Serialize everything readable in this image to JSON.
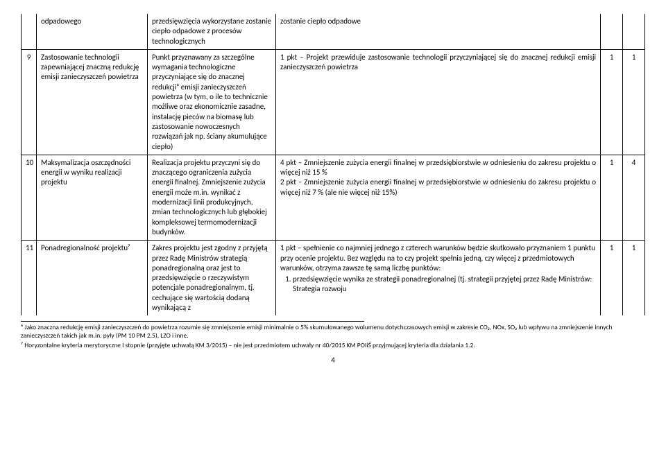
{
  "rows": [
    {
      "num": "",
      "name_cont": "odpadowego",
      "desc_cont": "przedsięwzięcia wykorzystane zostanie ciepło odpadowe z procesów technologicznych",
      "eval_cont": "zostanie ciepło odpadowe",
      "pt1": "",
      "pt2": ""
    },
    {
      "num": "9",
      "name": "Zastosowanie technologii zapewniającej znaczną redukcję emisji zanieczyszczeń powietrza",
      "desc": "Punkt przyznawany za szczególne wymagania technologiczne przyczyniające się do znacznej redukcji⁶ emisji zanieczyszczeń powietrza (w tym, o ile to technicznie możliwe oraz ekonomicznie zasadne, instalację pieców na biomasę lub zastosowanie nowoczesnych rozwiązań jak np. ściany akumulujące ciepło)",
      "eval": "1 pkt – Projekt przewiduje zastosowanie technologii przyczyniającej się do znacznej redukcji emisji zanieczyszczeń powietrza",
      "pt1": "1",
      "pt2": "1"
    },
    {
      "num": "10",
      "name": "Maksymalizacja oszczędności energii w wyniku realizacji projektu",
      "desc": "Realizacja projektu przyczyni się do znaczącego ograniczenia zużycia energii finalnej. Zmniejszenie zużycia energii może m.in. wynikać z modernizacji linii produkcyjnych, zmian technologicznych lub głębokiej kompleksowej termomodernizacji budynków.",
      "eval_line1": "4 pkt – Zmniejszenie zużycia energii finalnej w przedsiębiorstwie w odniesieniu do zakresu projektu o więcej niż 15 %",
      "eval_line2": "2 pkt – Zmniejszenie zużycia energii finalnej w przedsiębiorstwie w odniesieniu do zakresu projektu o więcej niż 7 % (ale nie więcej niż 15%)",
      "pt1": "1",
      "pt2": "4"
    },
    {
      "num": "11",
      "name": "Ponadregionalność projektu⁷",
      "desc": "Zakres projektu jest zgodny z przyjętą przez Radę Ministrów strategią ponadregionalną oraz jest to przedsięwzięcie o rzeczywistym potencjale ponadregionalnym, tj. cechujące się wartością dodaną wynikającą z",
      "eval_intro": "1 pkt – spełnienie co najmniej jednego z czterech warunków będzie skutkowało przyznaniem 1 punktu przy ocenie projektu. Bez względu na to czy projekt spełnia jedną, czy więcej  z przedmiotowych warunków, otrzyma zawsze tę samą liczbę punktów:",
      "eval_item1": "przedsięwzięcie wynika ze strategii ponadregionalnej (tj. strategii przyjętej przez Radę Ministrów: Strategia rozwoju",
      "pt1": "1",
      "pt2": "1"
    }
  ],
  "footnotes": {
    "f6": "⁶ Jako znaczna redukcję emisji zanieczyszczeń do powietrza rozumie się zmniejszenie emisji minimalnie o 5% skumulowanego wolumenu dotychczasowych emisji w zakresie CO₂, NOx, SO₂ lub wpływu na zmniejszenie innych zanieczyszczeń  takich jak m.in. pyły (PM 10 PM 2,5), LZO i inne.",
    "f7": "⁷ Horyzontalne kryteria merytoryczne I stopnie (przyjęte uchwałą KM 3/2015) –  nie jest przedmiotem uchwały nr 40/2015 KM POIiŚ przyjmującej kryteria dla działania 1.2."
  },
  "page_number": "4"
}
